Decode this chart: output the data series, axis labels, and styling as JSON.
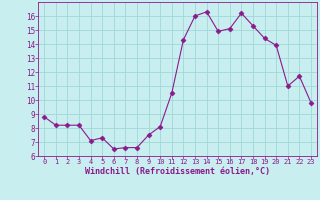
{
  "x": [
    0,
    1,
    2,
    3,
    4,
    5,
    6,
    7,
    8,
    9,
    10,
    11,
    12,
    13,
    14,
    15,
    16,
    17,
    18,
    19,
    20,
    21,
    22,
    23
  ],
  "y": [
    8.8,
    8.2,
    8.2,
    8.2,
    7.1,
    7.3,
    6.5,
    6.6,
    6.6,
    7.5,
    8.1,
    10.5,
    14.3,
    16.0,
    16.3,
    14.9,
    15.1,
    16.2,
    15.3,
    14.4,
    13.9,
    11.0,
    11.7,
    9.8
  ],
  "line_color": "#8b1a8b",
  "marker": "D",
  "marker_size": 2.5,
  "bg_color": "#c8eef0",
  "grid_color": "#a0d8d8",
  "xlabel": "Windchill (Refroidissement éolien,°C)",
  "tick_color": "#8b1a8b",
  "ylim": [
    6,
    17
  ],
  "yticks": [
    6,
    7,
    8,
    9,
    10,
    11,
    12,
    13,
    14,
    15,
    16
  ],
  "xlim": [
    -0.5,
    23.5
  ],
  "xticks": [
    0,
    1,
    2,
    3,
    4,
    5,
    6,
    7,
    8,
    9,
    10,
    11,
    12,
    13,
    14,
    15,
    16,
    17,
    18,
    19,
    20,
    21,
    22,
    23
  ],
  "figsize": [
    3.2,
    2.0
  ],
  "dpi": 100
}
